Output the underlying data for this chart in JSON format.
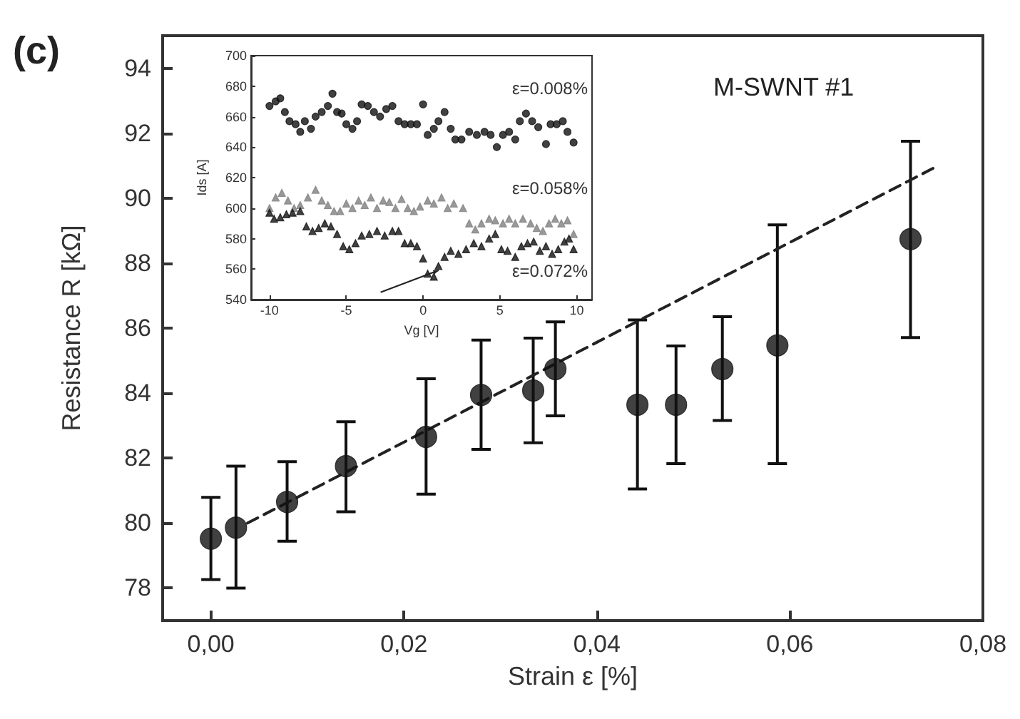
{
  "chart_data": [
    {
      "type": "scatter",
      "xlabel": "Strain ε [%]",
      "ylabel": "Resistance R [kΩ]",
      "annotations": [
        "(c)",
        "M-SWNT #1"
      ],
      "xlim": [
        -0.005,
        0.08
      ],
      "xticks": [
        {
          "value": 0,
          "label": "0,00"
        },
        {
          "value": 0.02,
          "label": "0,02"
        },
        {
          "value": 0.04,
          "label": "0,04"
        },
        {
          "value": 0.06,
          "label": "0,06"
        },
        {
          "value": 0.08,
          "label": "0,08"
        }
      ],
      "ylim": [
        77,
        95
      ],
      "yticks": [
        78,
        80,
        82,
        84,
        86,
        88,
        90,
        92,
        94
      ],
      "grid": false,
      "series": [
        {
          "color": "#111111",
          "marker": "circle",
          "x": [
            0,
            0.0026,
            0.0079,
            0.014,
            0.0223,
            0.028,
            0.0334,
            0.0357,
            0.0442,
            0.0482,
            0.053,
            0.0587,
            0.0725
          ],
          "values": [
            79.52,
            79.86,
            80.65,
            81.75,
            82.65,
            83.94,
            84.08,
            84.74,
            83.64,
            83.64,
            84.74,
            85.47,
            88.74
          ],
          "errors": [
            [
              78.26,
              80.79
            ],
            [
              78.0,
              81.75
            ],
            [
              79.44,
              81.89
            ],
            [
              80.35,
              83.12
            ],
            [
              80.89,
              84.44
            ],
            [
              82.27,
              85.63
            ],
            [
              82.47,
              85.69
            ],
            [
              83.3,
              86.19
            ],
            [
              81.05,
              86.25
            ],
            [
              81.83,
              85.45
            ],
            [
              83.16,
              86.35
            ],
            [
              81.83,
              89.18
            ],
            [
              85.71,
              91.75
            ]
          ]
        },
        {
          "type": "line",
          "color": "#222222",
          "marker": "none",
          "line_style": "dashed",
          "x": [
            0.0038,
            0.0753
          ],
          "values": [
            80.0,
            90.99
          ]
        }
      ]
    },
    {
      "type": "scatter",
      "xlabel": "Vg [V]",
      "ylabel": "Ids [A]",
      "xlim": [
        -11.2,
        11
      ],
      "xticks": [
        -10,
        -5,
        0,
        5,
        10
      ],
      "ylim": [
        540,
        700
      ],
      "yticks": [
        540,
        560,
        580,
        600,
        620,
        640,
        660,
        680,
        700
      ],
      "grid": false,
      "series": [
        {
          "name": "ε=0.008%",
          "color": "#111111",
          "marker": "circle",
          "x": [
            -10,
            -9.6,
            -9.3,
            -9,
            -8.7,
            -8.3,
            -8,
            -7.7,
            -7.3,
            -7,
            -6.6,
            -6.2,
            -5.9,
            -5.6,
            -5.3,
            -5,
            -4.6,
            -4.3,
            -4,
            -3.6,
            -3.2,
            -2.8,
            -2.4,
            -2,
            -1.6,
            -1.2,
            -0.8,
            -0.4,
            0,
            0.3,
            0.7,
            1,
            1.4,
            1.8,
            2.1,
            2.5,
            3,
            3.5,
            4,
            4.4,
            4.8,
            5.2,
            5.6,
            6,
            6.3,
            6.7,
            7.1,
            7.5,
            8,
            8.3,
            8.7,
            9.1,
            9.4,
            9.8
          ],
          "values": [
            667,
            670,
            672,
            663,
            657,
            655,
            650,
            657,
            652,
            660,
            663,
            667,
            675,
            663,
            662,
            655,
            652,
            657,
            668,
            667,
            663,
            660,
            665,
            667,
            657,
            655,
            655,
            655,
            668,
            648,
            652,
            657,
            663,
            652,
            645,
            645,
            650,
            648,
            650,
            648,
            640,
            648,
            650,
            645,
            657,
            662,
            657,
            653,
            642,
            655,
            655,
            657,
            650,
            643
          ]
        },
        {
          "name": "ε=0.058%",
          "color": "#808080",
          "marker": "triangle",
          "x": [
            -10,
            -9.6,
            -9.2,
            -8.8,
            -8.4,
            -8,
            -7.5,
            -7,
            -6.6,
            -6.2,
            -5.8,
            -5.4,
            -5,
            -4.6,
            -4.2,
            -3.8,
            -3.4,
            -3,
            -2.6,
            -2.2,
            -1.8,
            -1.4,
            -1,
            -0.6,
            -0.2,
            0.3,
            0.7,
            1.2,
            1.6,
            2,
            2.6,
            3,
            3.4,
            3.8,
            4.3,
            4.7,
            5.2,
            5.6,
            6,
            6.5,
            7,
            7.4,
            7.8,
            8.2,
            8.6,
            9,
            9.4,
            9.8
          ],
          "values": [
            600,
            607,
            610,
            605,
            600,
            602,
            607,
            612,
            605,
            602,
            598,
            598,
            603,
            600,
            605,
            602,
            607,
            600,
            605,
            604,
            600,
            606,
            600,
            598,
            601,
            605,
            603,
            607,
            600,
            603,
            600,
            590,
            586,
            590,
            593,
            592,
            590,
            593,
            590,
            593,
            590,
            587,
            585,
            590,
            593,
            590,
            592,
            583
          ]
        },
        {
          "name": "ε=0.072%",
          "color": "#111111",
          "marker": "triangle",
          "x": [
            -10,
            -9.7,
            -9.3,
            -8.9,
            -8.5,
            -8,
            -7.6,
            -7.2,
            -6.8,
            -6.4,
            -6,
            -5.6,
            -5.2,
            -4.8,
            -4.4,
            -4,
            -3.5,
            -3,
            -2.5,
            -2,
            -1.6,
            -1.2,
            -0.8,
            -0.4,
            0,
            0.3,
            0.7,
            1,
            1.4,
            1.8,
            2.3,
            2.8,
            3.3,
            3.8,
            4.3,
            4.7,
            5.1,
            5.5,
            6,
            6.4,
            6.8,
            7.2,
            7.6,
            8,
            8.4,
            8.8,
            9.2,
            9.5,
            9.8
          ],
          "values": [
            597,
            593,
            594,
            596,
            597,
            598,
            588,
            585,
            587,
            590,
            588,
            583,
            575,
            573,
            577,
            582,
            583,
            585,
            582,
            585,
            585,
            577,
            577,
            575,
            567,
            557,
            555,
            562,
            568,
            572,
            570,
            573,
            577,
            575,
            580,
            583,
            573,
            572,
            568,
            575,
            577,
            578,
            572,
            575,
            570,
            573,
            578,
            580,
            573
          ]
        }
      ]
    }
  ]
}
